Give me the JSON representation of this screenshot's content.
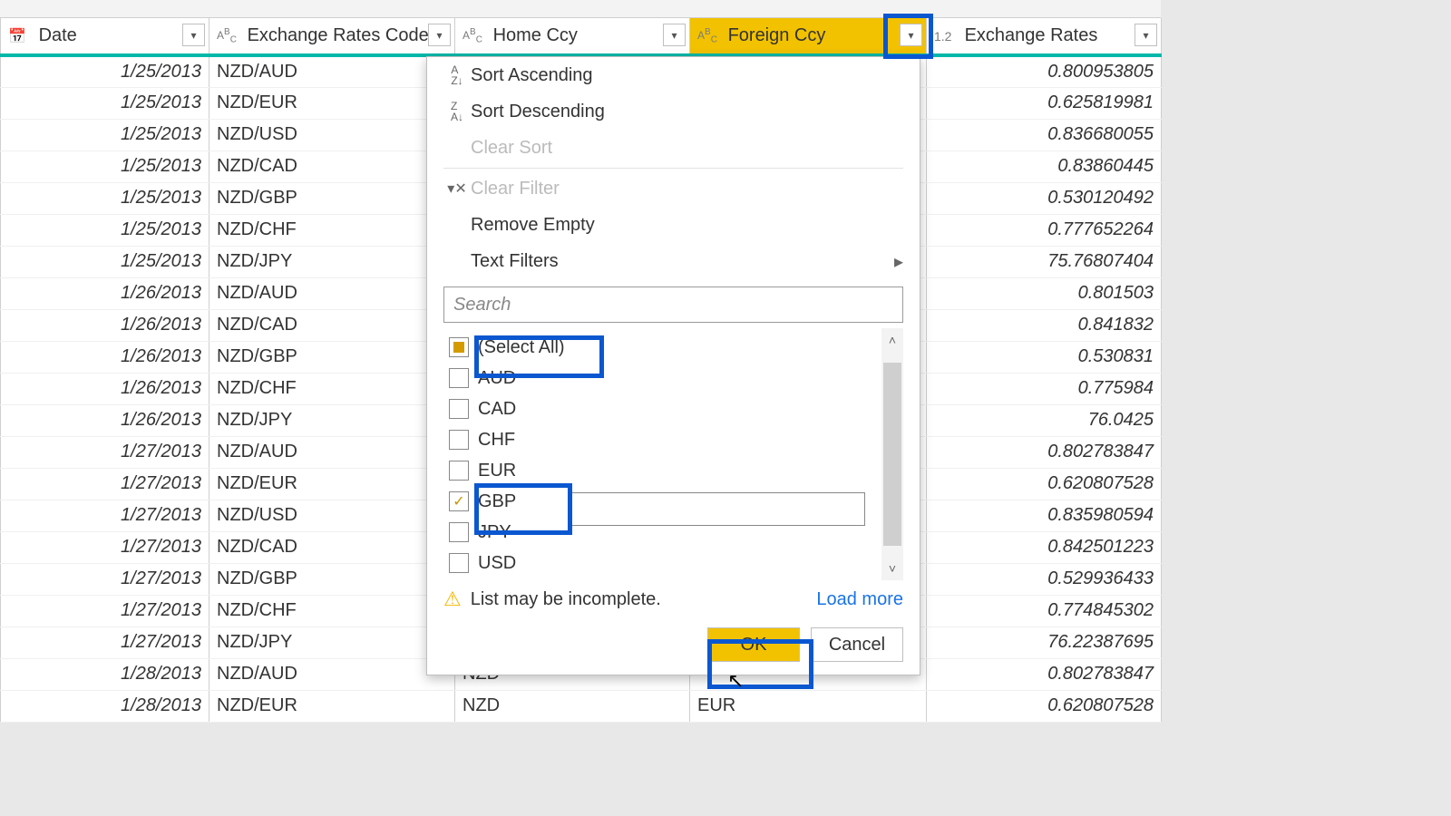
{
  "columns": {
    "date": "Date",
    "code": "Exchange Rates Code",
    "home": "Home Ccy",
    "foreign": "Foreign Ccy",
    "rate": "Exchange Rates"
  },
  "type_prefix": {
    "text": "ABC",
    "num": "1.2"
  },
  "rows": [
    {
      "date": "1/25/2013",
      "code": "NZD/AUD",
      "home": "",
      "foreign": "",
      "rate": "0.800953805"
    },
    {
      "date": "1/25/2013",
      "code": "NZD/EUR",
      "home": "",
      "foreign": "",
      "rate": "0.625819981"
    },
    {
      "date": "1/25/2013",
      "code": "NZD/USD",
      "home": "",
      "foreign": "",
      "rate": "0.836680055"
    },
    {
      "date": "1/25/2013",
      "code": "NZD/CAD",
      "home": "",
      "foreign": "",
      "rate": "0.83860445"
    },
    {
      "date": "1/25/2013",
      "code": "NZD/GBP",
      "home": "",
      "foreign": "",
      "rate": "0.530120492"
    },
    {
      "date": "1/25/2013",
      "code": "NZD/CHF",
      "home": "",
      "foreign": "",
      "rate": "0.777652264"
    },
    {
      "date": "1/25/2013",
      "code": "NZD/JPY",
      "home": "",
      "foreign": "",
      "rate": "75.76807404"
    },
    {
      "date": "1/26/2013",
      "code": "NZD/AUD",
      "home": "",
      "foreign": "",
      "rate": "0.801503"
    },
    {
      "date": "1/26/2013",
      "code": "NZD/CAD",
      "home": "",
      "foreign": "",
      "rate": "0.841832"
    },
    {
      "date": "1/26/2013",
      "code": "NZD/GBP",
      "home": "",
      "foreign": "",
      "rate": "0.530831"
    },
    {
      "date": "1/26/2013",
      "code": "NZD/CHF",
      "home": "",
      "foreign": "",
      "rate": "0.775984"
    },
    {
      "date": "1/26/2013",
      "code": "NZD/JPY",
      "home": "",
      "foreign": "",
      "rate": "76.0425"
    },
    {
      "date": "1/27/2013",
      "code": "NZD/AUD",
      "home": "",
      "foreign": "",
      "rate": "0.802783847"
    },
    {
      "date": "1/27/2013",
      "code": "NZD/EUR",
      "home": "",
      "foreign": "",
      "rate": "0.620807528"
    },
    {
      "date": "1/27/2013",
      "code": "NZD/USD",
      "home": "",
      "foreign": "",
      "rate": "0.835980594"
    },
    {
      "date": "1/27/2013",
      "code": "NZD/CAD",
      "home": "",
      "foreign": "",
      "rate": "0.842501223"
    },
    {
      "date": "1/27/2013",
      "code": "NZD/GBP",
      "home": "",
      "foreign": "",
      "rate": "0.529936433"
    },
    {
      "date": "1/27/2013",
      "code": "NZD/CHF",
      "home": "",
      "foreign": "",
      "rate": "0.774845302"
    },
    {
      "date": "1/27/2013",
      "code": "NZD/JPY",
      "home": "",
      "foreign": "",
      "rate": "76.22387695"
    },
    {
      "date": "1/28/2013",
      "code": "NZD/AUD",
      "home": "NZD",
      "foreign": "",
      "rate": "0.802783847"
    },
    {
      "date": "1/28/2013",
      "code": "NZD/EUR",
      "home": "NZD",
      "foreign": "EUR",
      "rate": "0.620807528"
    }
  ],
  "menu": {
    "sort_asc": "Sort Ascending",
    "sort_desc": "Sort Descending",
    "clear_sort": "Clear Sort",
    "clear_filter": "Clear Filter",
    "remove_empty": "Remove Empty",
    "text_filters": "Text Filters"
  },
  "search_placeholder": "Search",
  "filter_values": {
    "select_all": "(Select All)",
    "items": [
      "AUD",
      "CAD",
      "CHF",
      "EUR",
      "GBP",
      "JPY",
      "USD"
    ],
    "checked": "GBP"
  },
  "warning": "List may be incomplete.",
  "load_more": "Load more",
  "buttons": {
    "ok": "OK",
    "cancel": "Cancel"
  }
}
